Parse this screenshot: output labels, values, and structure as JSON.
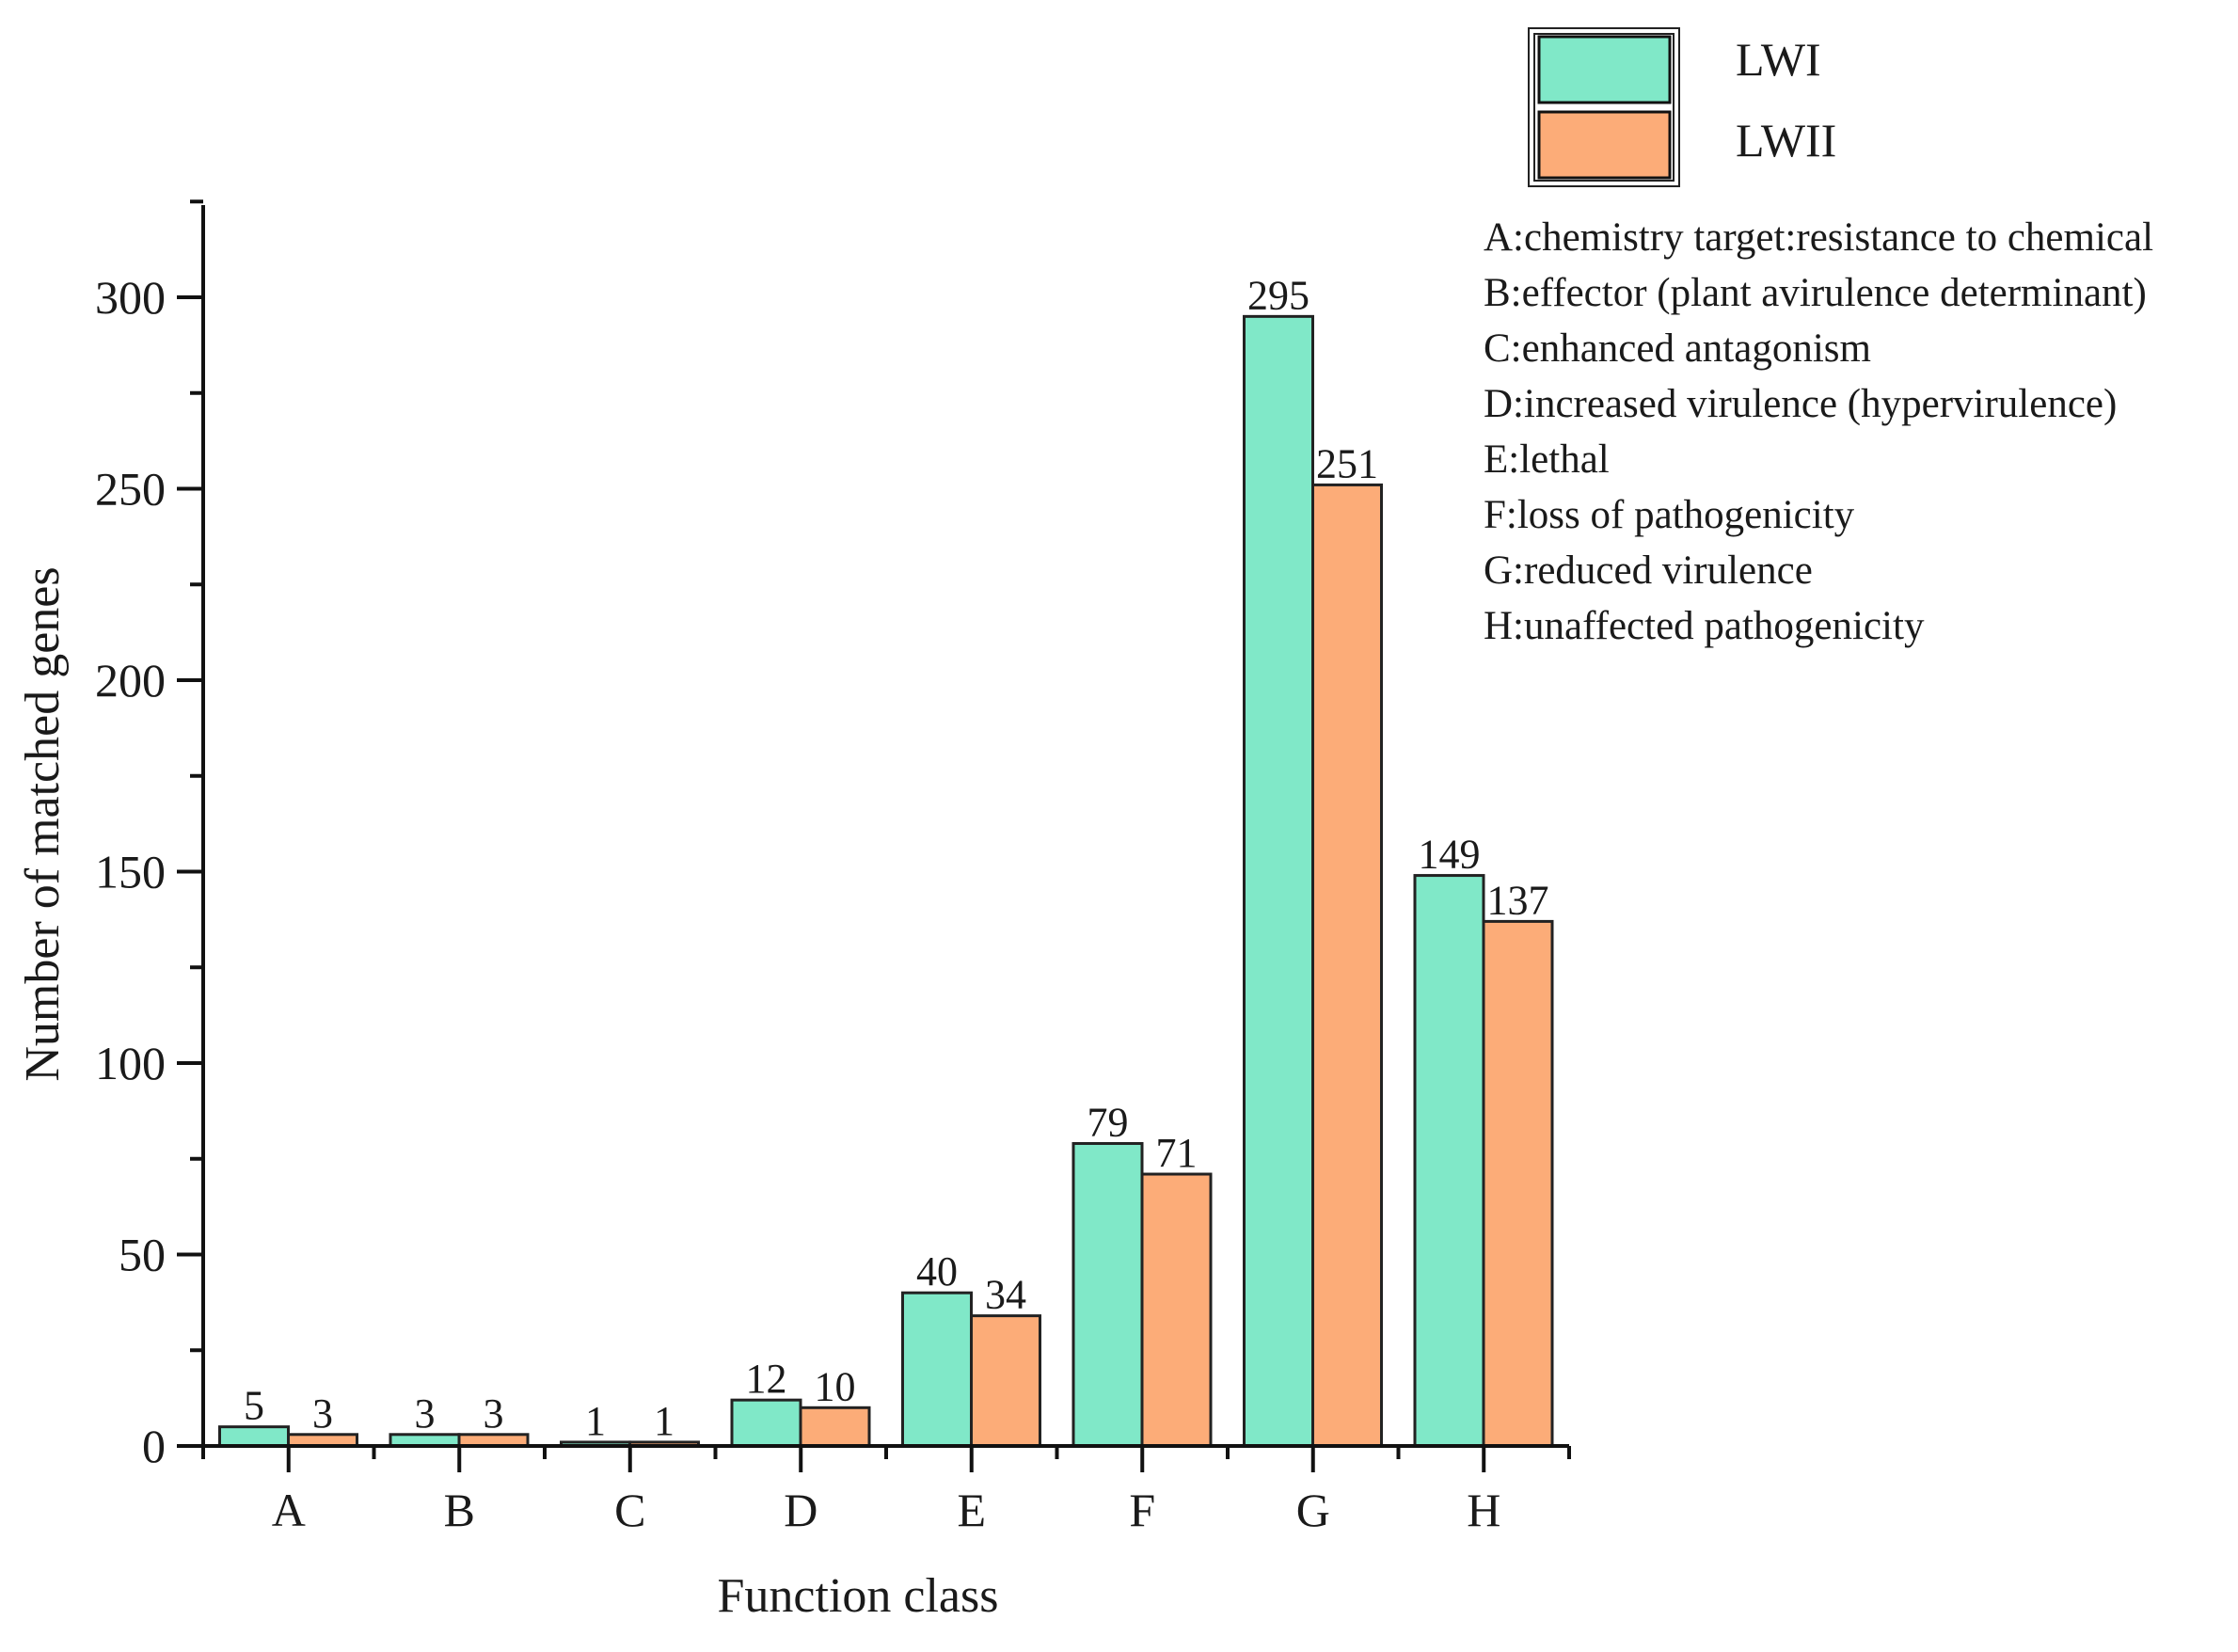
{
  "chart_data": {
    "type": "bar",
    "title": "",
    "xlabel": "Function class",
    "ylabel": "Number of matched genes",
    "categories": [
      "A",
      "B",
      "C",
      "D",
      "E",
      "F",
      "G",
      "H"
    ],
    "series": [
      {
        "name": "LWI",
        "color": "#80e8c8",
        "values": [
          5,
          3,
          1,
          12,
          40,
          79,
          295,
          149
        ]
      },
      {
        "name": "LWII",
        "color": "#fcac78",
        "values": [
          3,
          3,
          1,
          10,
          34,
          71,
          251,
          137
        ]
      }
    ],
    "ylim": [
      0,
      325
    ],
    "yticks": [
      0,
      50,
      100,
      150,
      200,
      250,
      300
    ],
    "grid": false,
    "legend_position": "top-right",
    "category_descriptions": [
      "A:chemistry target:resistance to chemical",
      "B:effector (plant avirulence determinant)",
      "C:enhanced antagonism",
      "D:increased virulence (hypervirulence)",
      "E:lethal",
      "F:loss of pathogenicity",
      "G:reduced virulence",
      "H:unaffected pathogenicity"
    ]
  }
}
